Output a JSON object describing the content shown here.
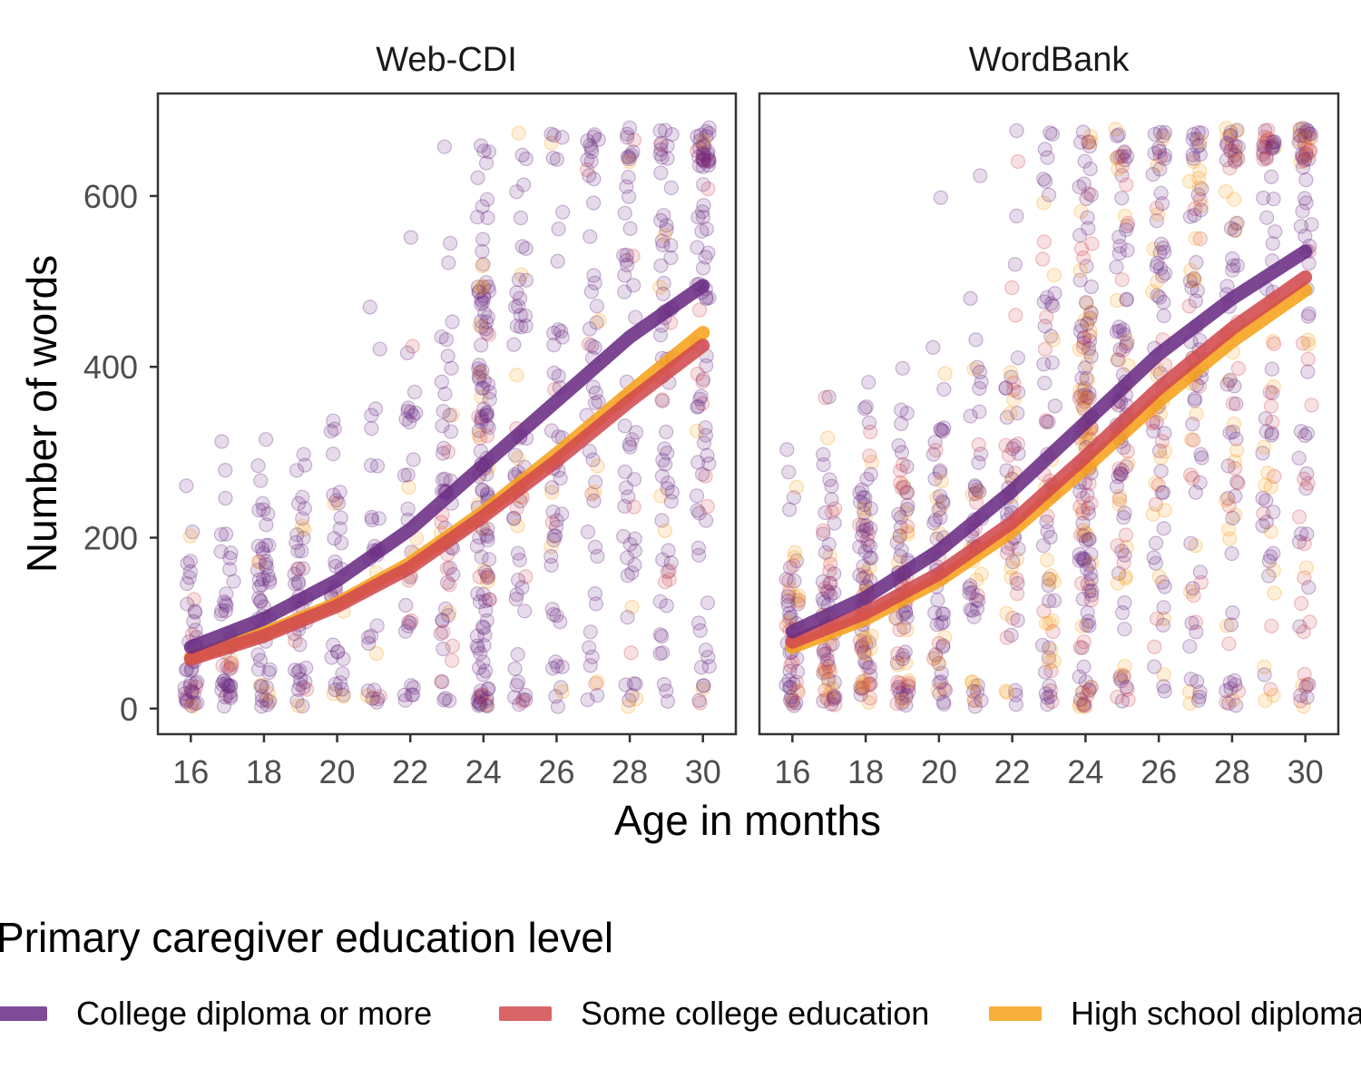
{
  "chart_data": {
    "type": "scatter",
    "facets": [
      "Web-CDI",
      "WordBank"
    ],
    "xlabel": "Age in months",
    "ylabel": "Number of words",
    "xlim": [
      15.1,
      30.9
    ],
    "ylim": [
      -30,
      720
    ],
    "xticks": [
      16,
      18,
      20,
      22,
      24,
      26,
      28,
      30
    ],
    "yticks": [
      0,
      200,
      400,
      600
    ],
    "legend": {
      "title": "Primary caregiver education level",
      "position": "bottom"
    },
    "series": [
      {
        "name": "College diploma or more",
        "color": "#6a2c84"
      },
      {
        "name": "Some college education",
        "color": "#d24a4e"
      },
      {
        "name": "High school diploma",
        "color": "#f7a21b"
      }
    ],
    "fit_lines": [
      {
        "facet": "Web-CDI",
        "curves": [
          {
            "series": "College diploma or more",
            "x": [
              16,
              18,
              20,
              22,
              24,
              26,
              28,
              30
            ],
            "y": [
              72,
              105,
              150,
              210,
              285,
              360,
              435,
              495
            ]
          },
          {
            "series": "Some college education",
            "x": [
              16,
              18,
              20,
              22,
              24,
              26,
              28,
              30
            ],
            "y": [
              58,
              85,
              120,
              165,
              225,
              290,
              360,
              425
            ]
          },
          {
            "series": "High school diploma",
            "x": [
              16,
              18,
              20,
              22,
              24,
              26,
              28,
              30
            ],
            "y": [
              60,
              88,
              123,
              170,
              230,
              298,
              370,
              440
            ]
          }
        ]
      },
      {
        "facet": "WordBank",
        "curves": [
          {
            "series": "College diploma or more",
            "x": [
              16,
              18,
              20,
              22,
              24,
              26,
              28,
              30
            ],
            "y": [
              90,
              130,
              185,
              255,
              335,
              415,
              480,
              535
            ]
          },
          {
            "series": "Some college education",
            "x": [
              16,
              18,
              20,
              22,
              24,
              26,
              28,
              30
            ],
            "y": [
              78,
              112,
              158,
              218,
              295,
              375,
              445,
              505
            ]
          },
          {
            "series": "High school diploma",
            "x": [
              16,
              18,
              20,
              22,
              24,
              26,
              28,
              30
            ],
            "y": [
              72,
              105,
              150,
              208,
              282,
              360,
              430,
              490
            ]
          }
        ]
      }
    ],
    "scatter_density": {
      "ages": [
        16,
        17,
        18,
        19,
        20,
        21,
        22,
        23,
        24,
        25,
        26,
        27,
        28,
        29,
        30
      ],
      "Web-CDI_counts": [
        45,
        45,
        55,
        45,
        35,
        30,
        35,
        55,
        140,
        60,
        50,
        50,
        55,
        70,
        90
      ],
      "WordBank_counts": [
        60,
        70,
        90,
        80,
        60,
        55,
        60,
        70,
        160,
        100,
        80,
        80,
        80,
        70,
        80
      ]
    }
  }
}
